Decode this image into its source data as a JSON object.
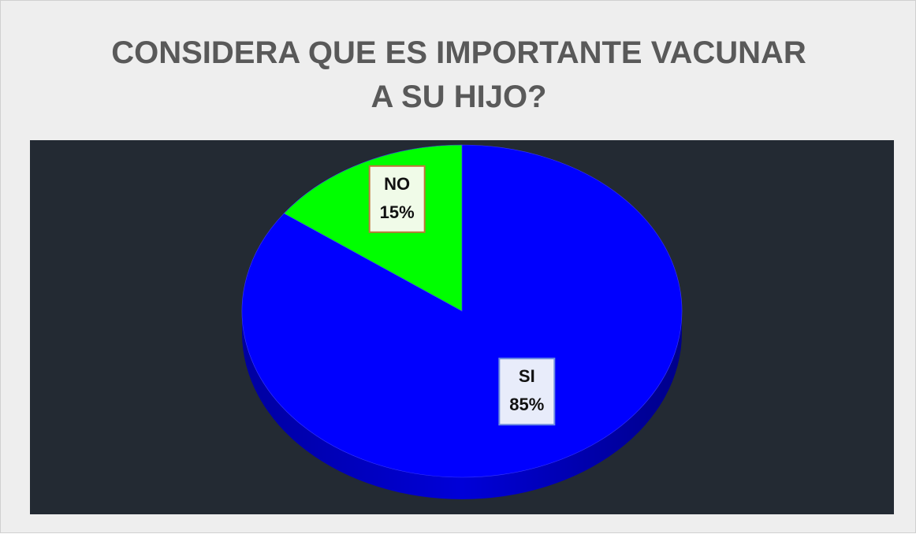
{
  "chart_data": {
    "type": "pie",
    "title": "CONSIDERA QUE ES IMPORTANTE VACUNAR A SU HIJO?",
    "categories": [
      "SI",
      "NO"
    ],
    "values": [
      85,
      15
    ],
    "value_labels": [
      "85%",
      "15%"
    ],
    "colors": [
      "#0000ff",
      "#00ff00"
    ]
  }
}
